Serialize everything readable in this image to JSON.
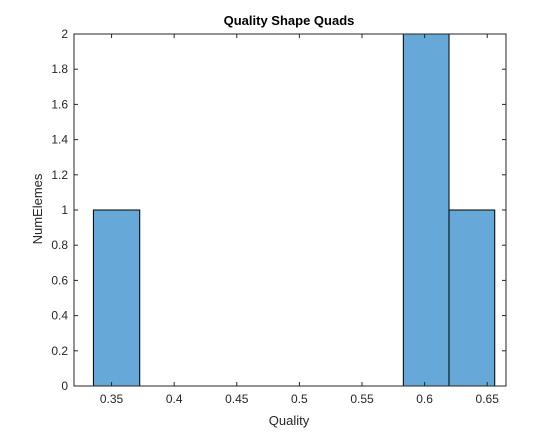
{
  "chart_data": {
    "type": "bar",
    "subtype": "histogram",
    "title": "Quality Shape Quads",
    "xlabel": "Quality",
    "ylabel": "NumElemes",
    "xlim": [
      0.32,
      0.665
    ],
    "ylim": [
      0,
      2
    ],
    "xticks": [
      0.35,
      0.4,
      0.45,
      0.5,
      0.55,
      0.6,
      0.65
    ],
    "xtick_labels": [
      "0.35",
      "0.4",
      "0.45",
      "0.5",
      "0.55",
      "0.6",
      "0.65"
    ],
    "yticks": [
      0,
      0.2,
      0.4,
      0.6,
      0.8,
      1,
      1.2,
      1.4,
      1.6,
      1.8,
      2
    ],
    "ytick_labels": [
      "0",
      "0.2",
      "0.4",
      "0.6",
      "0.8",
      "1",
      "1.2",
      "1.4",
      "1.6",
      "1.8",
      "2"
    ],
    "bins": [
      {
        "x0": 0.3355,
        "x1": 0.3725,
        "value": 1
      },
      {
        "x0": 0.583,
        "x1": 0.6195,
        "value": 2
      },
      {
        "x0": 0.6195,
        "x1": 0.656,
        "value": 1
      }
    ],
    "colors": {
      "bar_fill": "#66a9d8",
      "bar_edge": "#000000",
      "axis": "#262626"
    },
    "grid": false
  }
}
